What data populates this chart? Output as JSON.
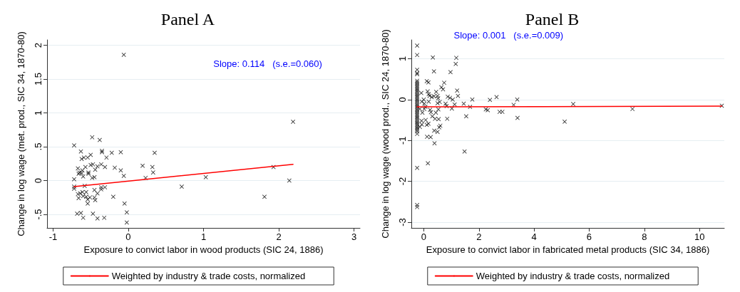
{
  "chart_data": [
    {
      "type": "scatter",
      "title": "Panel A",
      "xlabel": "Exposure to convict labor in wood products (SIC 24, 1886)",
      "ylabel": "Change in log wage (met. prod., SIC 34, 1870-80)",
      "annotations": [
        "Slope: 0.114   (s.e.=0.060)"
      ],
      "xlim": [
        -1.08,
        3.08
      ],
      "xticks": [
        -1,
        0,
        1,
        2,
        3
      ],
      "ylim": [
        -0.7,
        2.08
      ],
      "yticks": [
        {
          "value": -0.5,
          "label": "-.5"
        },
        0,
        {
          "value": 0.5,
          "label": ".5"
        },
        1,
        {
          "value": 1.5,
          "label": "1.5"
        },
        2
      ],
      "grid": "y",
      "legend": "bottom",
      "marker": "cross",
      "series": [
        {
          "color": "#000000",
          "x": [
            -0.06,
            2.19,
            -0.48,
            -0.38,
            -0.72,
            -0.63,
            -0.35,
            -0.35,
            -0.22,
            -0.1,
            0.35,
            -0.5,
            -0.29,
            -0.62,
            -0.59,
            -0.54,
            -0.5,
            -0.47,
            -0.36,
            -0.41,
            -0.57,
            -0.31,
            0.19,
            0.32,
            -0.18,
            -0.67,
            -0.44,
            -0.1,
            1.93,
            0.33,
            -0.65,
            -0.62,
            -0.53,
            -0.66,
            -0.61,
            -0.53,
            -0.6,
            -0.06,
            -0.48,
            -0.45,
            0.23,
            1.03,
            -0.72,
            2.14,
            -0.72,
            -0.72,
            -0.58,
            -0.36,
            -0.36,
            -0.31,
            0.71,
            -0.45,
            -0.56,
            -0.41,
            -0.67,
            -0.64,
            -0.61,
            -0.6,
            -0.56,
            -0.51,
            -0.54,
            -0.45,
            -0.44,
            -0.66,
            -0.2,
            1.81,
            -0.54,
            -0.05,
            -0.02,
            -0.68,
            -0.63,
            -0.47,
            -0.6,
            -0.41,
            -0.32,
            -0.02
          ],
          "values": [
            1.86,
            0.87,
            0.64,
            0.6,
            0.52,
            0.43,
            0.44,
            0.42,
            0.41,
            0.42,
            0.41,
            0.38,
            0.34,
            0.32,
            0.34,
            0.34,
            0.23,
            0.24,
            0.24,
            0.21,
            0.2,
            0.2,
            0.22,
            0.2,
            0.19,
            0.18,
            0.16,
            0.15,
            0.2,
            0.12,
            0.12,
            0.11,
            0.12,
            0.1,
            0.15,
            0.1,
            0.06,
            0.07,
            0.04,
            0.05,
            0.04,
            0.05,
            0.02,
            0.0,
            -0.09,
            -0.12,
            -0.08,
            -0.1,
            -0.13,
            -0.1,
            -0.09,
            -0.14,
            -0.17,
            -0.19,
            -0.2,
            -0.19,
            -0.17,
            -0.23,
            -0.24,
            -0.25,
            -0.28,
            -0.25,
            -0.29,
            -0.26,
            -0.24,
            -0.24,
            -0.34,
            -0.34,
            -0.47,
            -0.49,
            -0.48,
            -0.49,
            -0.55,
            -0.56,
            -0.55,
            -0.62
          ]
        },
        {
          "type": "line",
          "name": "Weighted by industry & trade costs, normalized",
          "color": "#ff0000",
          "marker": "none",
          "x": [
            -0.72,
            2.19
          ],
          "values": [
            -0.09,
            0.24
          ]
        }
      ]
    },
    {
      "type": "scatter",
      "title": "Panel B",
      "xlabel": "Exposure to convict labor in fabricated metal products (SIC 34, 1886)",
      "ylabel": "Change in log wage (wood prod., SIC 24, 1870-80)",
      "annotations": [
        "Slope: 0.001   (s.e.=0.009)"
      ],
      "xlim": [
        -0.45,
        10.9
      ],
      "xticks": [
        0,
        2,
        4,
        6,
        8,
        10
      ],
      "ylim": [
        -3.14,
        1.46
      ],
      "yticks": [
        -3,
        -2,
        -1,
        0,
        1
      ],
      "grid": "y",
      "legend": "bottom",
      "marker": "cross",
      "series": [
        {
          "color": "#000000",
          "x": [
            -0.24,
            -0.24,
            -0.24,
            -0.24,
            -0.24,
            -0.24,
            -0.24,
            -0.24,
            -0.24,
            -0.24,
            -0.24,
            -0.24,
            -0.24,
            -0.24,
            -0.24,
            -0.24,
            -0.24,
            -0.24,
            -0.24,
            -0.24,
            -0.24,
            -0.24,
            -0.24,
            -0.24,
            -0.24,
            -0.24,
            -0.24,
            -0.24,
            -0.24,
            -0.24,
            -0.24,
            -0.24,
            -0.24,
            -0.24,
            -0.24,
            -0.24,
            -0.24,
            -0.24,
            -0.24,
            -0.24,
            -0.24,
            0.33,
            1.18,
            1.16,
            0.37,
            0.97,
            0.74,
            0.11,
            0.17,
            0.64,
            0.7,
            1.21,
            -0.09,
            0.14,
            0.45,
            0.18,
            0.21,
            0.29,
            0.37,
            0.5,
            0.52,
            1.24,
            0.87,
            0.95,
            1.05,
            0.0,
            2.64,
            1.76,
            2.4,
            3.39,
            -0.07,
            0.02,
            0.18,
            0.58,
            0.5,
            0.79,
            1.45,
            1.12,
            3.26,
            5.42,
            10.81,
            0.83,
            1.68,
            0.06,
            1.02,
            -0.14,
            0.02,
            0.23,
            0.53,
            2.25,
            2.32,
            7.57,
            0.26,
            0.44,
            -0.05,
            2.75,
            2.85,
            1.54,
            0.31,
            0.41,
            0.54,
            0.85,
            3.4,
            0.07,
            -0.08,
            5.11,
            -0.07,
            0.11,
            0.17,
            0.6,
            0.56,
            -0.14,
            0.38,
            0.5,
            0.12,
            0.25,
            0.39,
            1.48,
            0.15
          ],
          "values": [
            1.32,
            1.09,
            0.73,
            0.65,
            0.62,
            0.46,
            0.42,
            0.38,
            0.34,
            0.3,
            0.26,
            0.22,
            0.18,
            0.14,
            0.1,
            0.06,
            0.02,
            -0.02,
            -0.06,
            -0.1,
            -0.14,
            -0.18,
            -0.22,
            -0.26,
            -0.3,
            -0.34,
            -0.38,
            -0.42,
            -0.46,
            -0.5,
            -0.54,
            -0.58,
            -0.62,
            -0.66,
            -0.7,
            -0.74,
            -0.78,
            -0.84,
            -1.67,
            -2.58,
            -2.63,
            1.03,
            1.02,
            0.87,
            0.69,
            0.67,
            0.41,
            0.45,
            0.42,
            0.3,
            0.25,
            0.22,
            0.16,
            0.2,
            0.19,
            0.13,
            0.09,
            0.06,
            0.08,
            0.09,
            0.03,
            0.09,
            0.07,
            0.04,
            0.0,
            0.0,
            0.06,
            0.0,
            -0.01,
            0.0,
            -0.05,
            -0.1,
            -0.05,
            -0.06,
            -0.09,
            -0.1,
            -0.1,
            -0.12,
            -0.13,
            -0.11,
            -0.15,
            -0.16,
            -0.18,
            -0.18,
            -0.22,
            -0.23,
            -0.23,
            -0.25,
            -0.24,
            -0.24,
            -0.26,
            -0.23,
            -0.31,
            -0.32,
            -0.32,
            -0.3,
            -0.3,
            -0.41,
            -0.41,
            -0.47,
            -0.48,
            -0.47,
            -0.45,
            -0.5,
            -0.52,
            -0.54,
            -0.61,
            -0.62,
            -0.59,
            -0.64,
            -0.68,
            -0.67,
            -0.76,
            -0.79,
            -0.91,
            -0.92,
            -1.07,
            -1.27,
            -1.56
          ]
        },
        {
          "type": "line",
          "name": "Weighted by industry & trade costs, normalized",
          "color": "#ff0000",
          "marker": "none",
          "x": [
            -0.24,
            10.81
          ],
          "values": [
            -0.18,
            -0.16
          ]
        }
      ]
    }
  ]
}
